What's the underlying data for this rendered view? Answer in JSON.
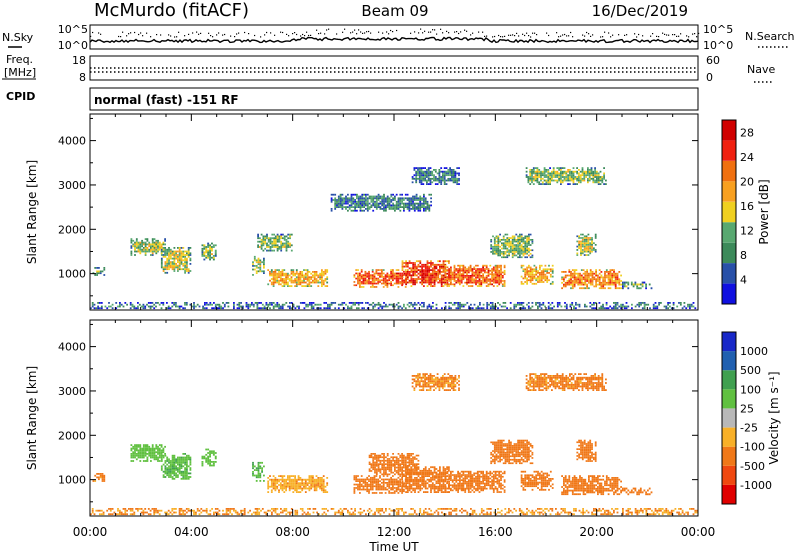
{
  "header": {
    "station": "McMurdo (fitACF)",
    "beam": "Beam 09",
    "date": "16/Dec/2019"
  },
  "noise_panel": {
    "left_label": "N.Sky",
    "right_label": "N.Search",
    "y_ticks_left": [
      "10^5",
      "10^0"
    ],
    "y_ticks_right": [
      "10^5",
      "10^0"
    ]
  },
  "freq_panel": {
    "left_label_1": "Freq.",
    "left_label_2": "[MHz]",
    "right_label": "Nave",
    "y_ticks_left": [
      "18",
      "8"
    ],
    "y_ticks_right": [
      "60",
      "0"
    ]
  },
  "cpid": {
    "label": "CPID",
    "text": "normal (fast) -151 RF"
  },
  "colors": {
    "power_scale": [
      "#1010e0",
      "#2850a8",
      "#3c8a5a",
      "#58a870",
      "#f0d020",
      "#f8a020",
      "#f07010",
      "#f02010",
      "#d00000"
    ],
    "velocity_scale": [
      "#e00000",
      "#f04810",
      "#f07818",
      "#f8b028",
      "#b8b8b8",
      "#60c040",
      "#40a050",
      "#2060b0",
      "#1828c8"
    ]
  },
  "chart_data": [
    {
      "type": "heatmap",
      "name": "power",
      "ylabel": "Slant Range [km]",
      "ylim": [
        180,
        4600
      ],
      "yticks": [
        1000,
        2000,
        3000,
        4000
      ],
      "xlim": [
        0,
        24
      ],
      "xtick_labels": [
        "00:00",
        "04:00",
        "08:00",
        "12:00",
        "16:00",
        "20:00",
        "00:00"
      ],
      "colorbar": {
        "label": "Power [dB]",
        "ticks": [
          4,
          8,
          12,
          16,
          20,
          24,
          28
        ],
        "range": [
          0,
          30
        ]
      },
      "echo_regions": [
        {
          "t": [
            0.1,
            0.6
          ],
          "r": [
            950,
            1150
          ],
          "v": 10
        },
        {
          "t": [
            1.6,
            3.0
          ],
          "r": [
            1400,
            1800
          ],
          "v": 13
        },
        {
          "t": [
            2.8,
            4.0
          ],
          "r": [
            1000,
            1600
          ],
          "v": 14
        },
        {
          "t": [
            4.4,
            5.0
          ],
          "r": [
            1300,
            1700
          ],
          "v": 12
        },
        {
          "t": [
            6.4,
            6.9
          ],
          "r": [
            950,
            1400
          ],
          "v": 14
        },
        {
          "t": [
            6.6,
            8.0
          ],
          "r": [
            1500,
            1900
          ],
          "v": 12
        },
        {
          "t": [
            7.0,
            9.4
          ],
          "r": [
            700,
            1100
          ],
          "v": 18
        },
        {
          "t": [
            10.4,
            12.5
          ],
          "r": [
            680,
            1100
          ],
          "v": 22
        },
        {
          "t": [
            12.3,
            14.2
          ],
          "r": [
            700,
            1300
          ],
          "v": 24
        },
        {
          "t": [
            14.0,
            16.4
          ],
          "r": [
            700,
            1200
          ],
          "v": 22
        },
        {
          "t": [
            15.8,
            17.5
          ],
          "r": [
            1350,
            1900
          ],
          "v": 12
        },
        {
          "t": [
            17.0,
            18.3
          ],
          "r": [
            750,
            1200
          ],
          "v": 18
        },
        {
          "t": [
            18.6,
            21.0
          ],
          "r": [
            650,
            1100
          ],
          "v": 20
        },
        {
          "t": [
            19.2,
            20.0
          ],
          "r": [
            1400,
            1900
          ],
          "v": 14
        },
        {
          "t": [
            21.0,
            22.2
          ],
          "r": [
            650,
            820
          ],
          "v": 10
        },
        {
          "t": [
            9.5,
            13.5
          ],
          "r": [
            2400,
            2800
          ],
          "v": 8
        },
        {
          "t": [
            12.7,
            14.6
          ],
          "r": [
            3000,
            3400
          ],
          "v": 8
        },
        {
          "t": [
            17.2,
            20.4
          ],
          "r": [
            3000,
            3400
          ],
          "v": 12
        },
        {
          "t": [
            0.0,
            24.0
          ],
          "r": [
            200,
            360
          ],
          "v": 8
        }
      ]
    },
    {
      "type": "heatmap",
      "name": "velocity",
      "ylabel": "Slant Range [km]",
      "xlabel": "Time UT",
      "ylim": [
        180,
        4600
      ],
      "yticks": [
        1000,
        2000,
        3000,
        4000
      ],
      "xlim": [
        0,
        24
      ],
      "xtick_labels": [
        "00:00",
        "04:00",
        "08:00",
        "12:00",
        "16:00",
        "20:00",
        "00:00"
      ],
      "colorbar": {
        "label": "Velocity [m s⁻¹]",
        "ticks": [
          "1000",
          "500",
          "100",
          "25",
          "-25",
          "-100",
          "-500",
          "-1000"
        ]
      },
      "echo_regions": [
        {
          "t": [
            0.1,
            0.6
          ],
          "r": [
            950,
            1150
          ],
          "v": -150
        },
        {
          "t": [
            1.6,
            3.0
          ],
          "r": [
            1400,
            1800
          ],
          "v": 60
        },
        {
          "t": [
            2.8,
            4.0
          ],
          "r": [
            1000,
            1600
          ],
          "v": 80
        },
        {
          "t": [
            4.4,
            5.0
          ],
          "r": [
            1300,
            1700
          ],
          "v": 60
        },
        {
          "t": [
            6.4,
            6.9
          ],
          "r": [
            950,
            1400
          ],
          "v": 80
        },
        {
          "t": [
            7.0,
            9.4
          ],
          "r": [
            700,
            1100
          ],
          "v": -80
        },
        {
          "t": [
            10.4,
            12.5
          ],
          "r": [
            680,
            1100
          ],
          "v": -300
        },
        {
          "t": [
            11.0,
            13.0
          ],
          "r": [
            1100,
            1600
          ],
          "v": -300
        },
        {
          "t": [
            12.3,
            14.2
          ],
          "r": [
            700,
            1300
          ],
          "v": -350
        },
        {
          "t": [
            14.0,
            16.4
          ],
          "r": [
            700,
            1200
          ],
          "v": -300
        },
        {
          "t": [
            15.8,
            17.5
          ],
          "r": [
            1350,
            1900
          ],
          "v": -300
        },
        {
          "t": [
            17.0,
            18.3
          ],
          "r": [
            750,
            1200
          ],
          "v": -300
        },
        {
          "t": [
            18.6,
            21.0
          ],
          "r": [
            650,
            1100
          ],
          "v": -300
        },
        {
          "t": [
            19.2,
            20.0
          ],
          "r": [
            1400,
            1900
          ],
          "v": -300
        },
        {
          "t": [
            21.0,
            22.2
          ],
          "r": [
            650,
            820
          ],
          "v": -300
        },
        {
          "t": [
            12.7,
            14.6
          ],
          "r": [
            3000,
            3400
          ],
          "v": -120
        },
        {
          "t": [
            17.2,
            20.4
          ],
          "r": [
            3000,
            3400
          ],
          "v": -150
        },
        {
          "t": [
            0.0,
            24.0
          ],
          "r": [
            200,
            360
          ],
          "v": -100
        }
      ]
    }
  ]
}
